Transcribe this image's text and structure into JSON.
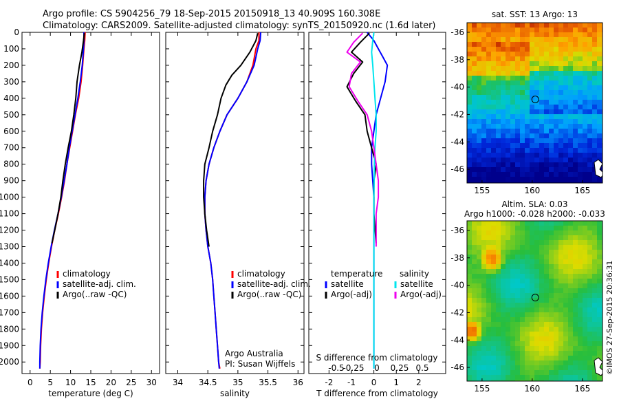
{
  "header": {
    "line1": "Argo profile: CS 5904256_79 18-Sep-2015 20150918_13 40.909S 160.308E",
    "line2": "Climatology: CARS2009. Satellite-adjusted climatology: synTS_20150920.nc (1.6d later)"
  },
  "colors": {
    "climatology": "#ff0000",
    "satellite": "#0000ff",
    "argo": "#000000",
    "salinity_satellite": "#00e5ee",
    "salinity_argo": "#ee00ee"
  },
  "chart_data": [
    {
      "id": "temperature",
      "type": "line",
      "xlabel": "temperature (deg C)",
      "ylabel": "",
      "xlim": [
        -2,
        32
      ],
      "ylim": [
        2070,
        0
      ],
      "xticks": [
        0,
        5,
        10,
        15,
        20,
        25,
        30
      ],
      "yticks": [
        0,
        100,
        200,
        300,
        400,
        500,
        600,
        700,
        800,
        900,
        1000,
        1100,
        1200,
        1300,
        1400,
        1500,
        1600,
        1700,
        1800,
        1900,
        2000
      ],
      "legend": {
        "position": "bottom-center",
        "entries": [
          "climatology",
          "satellite-adj. clim.",
          "Argo(..raw -QC)"
        ]
      },
      "series": [
        {
          "name": "climatology",
          "color": "#ff0000",
          "x": [
            13.6,
            13.5,
            13.3,
            13.0,
            12.6,
            12.0,
            11.2,
            10.5,
            9.8,
            9.1,
            8.5,
            7.8,
            7.0,
            6.1,
            5.3,
            4.6,
            4.0,
            3.5,
            3.1,
            2.8,
            2.6,
            2.5,
            2.4
          ],
          "y": [
            0,
            50,
            100,
            200,
            300,
            400,
            500,
            600,
            700,
            800,
            900,
            1000,
            1100,
            1200,
            1300,
            1400,
            1500,
            1600,
            1700,
            1800,
            1900,
            2000,
            2040
          ]
        },
        {
          "name": "satellite-adj. clim.",
          "color": "#0000ff",
          "x": [
            13.3,
            13.3,
            13.2,
            12.9,
            12.4,
            11.8,
            11.1,
            10.4,
            9.7,
            9.1,
            8.4,
            7.7,
            6.9,
            6.0,
            5.2,
            4.5,
            3.9,
            3.4,
            3.0,
            2.7,
            2.5,
            2.4,
            2.4
          ],
          "y": [
            0,
            50,
            100,
            200,
            300,
            400,
            500,
            600,
            700,
            800,
            900,
            1000,
            1100,
            1200,
            1300,
            1400,
            1500,
            1600,
            1700,
            1800,
            1900,
            2000,
            2040
          ]
        },
        {
          "name": "Argo(..raw -QC)",
          "color": "#000000",
          "x": [
            13.4,
            13.2,
            12.8,
            12.2,
            11.6,
            11.3,
            10.8,
            10.2,
            9.4,
            8.7,
            8.1,
            7.6,
            6.9,
            6.1,
            5.4
          ],
          "y": [
            5,
            50,
            120,
            200,
            300,
            400,
            500,
            600,
            700,
            800,
            900,
            1000,
            1100,
            1200,
            1280
          ]
        }
      ]
    },
    {
      "id": "salinity",
      "type": "line",
      "xlabel": "salinity",
      "xlim": [
        33.8,
        36.1
      ],
      "ylim": [
        2070,
        0
      ],
      "xticks": [
        34,
        34.5,
        35,
        35.5,
        36
      ],
      "legend": {
        "position": "bottom-center",
        "entries": [
          "climatology",
          "satellite-adj. clim.",
          "Argo(..raw -QC)"
        ]
      },
      "annotation": [
        "Argo Australia",
        "PI: Susan Wijffels"
      ],
      "series": [
        {
          "name": "climatology",
          "color": "#ff0000",
          "x": [
            35.35,
            35.35,
            35.3,
            35.25,
            35.15,
            35.0,
            34.82,
            34.7,
            34.6,
            34.52,
            34.47,
            34.45,
            34.45,
            34.47,
            34.5,
            34.55,
            34.58,
            34.6,
            34.62,
            34.64,
            34.66,
            34.68,
            34.7
          ],
          "y": [
            0,
            50,
            100,
            200,
            300,
            400,
            500,
            600,
            700,
            800,
            900,
            1000,
            1100,
            1200,
            1300,
            1400,
            1500,
            1600,
            1700,
            1800,
            1900,
            2000,
            2040
          ]
        },
        {
          "name": "satellite-adj. clim.",
          "color": "#0000ff",
          "x": [
            35.38,
            35.37,
            35.33,
            35.27,
            35.15,
            35.0,
            34.82,
            34.7,
            34.6,
            34.52,
            34.47,
            34.45,
            34.45,
            34.47,
            34.5,
            34.55,
            34.58,
            34.6,
            34.62,
            34.64,
            34.66,
            34.68,
            34.69
          ],
          "y": [
            0,
            50,
            100,
            200,
            300,
            400,
            500,
            600,
            700,
            800,
            900,
            1000,
            1100,
            1200,
            1300,
            1400,
            1500,
            1600,
            1700,
            1800,
            1900,
            2000,
            2040
          ]
        },
        {
          "name": "Argo(..raw -QC)",
          "color": "#000000",
          "x": [
            35.33,
            35.3,
            35.2,
            35.05,
            34.9,
            34.8,
            34.72,
            34.66,
            34.58,
            34.52,
            34.45,
            34.43,
            34.43,
            34.45,
            34.48,
            34.52
          ],
          "y": [
            5,
            50,
            120,
            200,
            260,
            320,
            400,
            500,
            600,
            700,
            800,
            900,
            1000,
            1100,
            1200,
            1300
          ]
        }
      ]
    },
    {
      "id": "difference",
      "type": "line",
      "xlabel": "T difference from climatology",
      "top_label": "S difference from climatology",
      "xlim": [
        -2.9,
        3.2
      ],
      "ylim": [
        2070,
        0
      ],
      "xticks": [
        -2,
        -1,
        0,
        1,
        2
      ],
      "top_ticks": [
        "-0.5",
        "-0.25",
        "0",
        "0.25",
        "0.5"
      ],
      "legend_left": {
        "title": "temperature",
        "entries": [
          "satellite",
          "Argo(-adj)"
        ]
      },
      "legend_right": {
        "title": "salinity",
        "entries": [
          "satellite",
          "Argo(-adj)"
        ]
      },
      "series": [
        {
          "name": "temperature satellite",
          "color": "#0000ff",
          "x": [
            -0.3,
            0.0,
            0.2,
            0.4,
            0.6,
            0.5,
            0.3,
            0.1,
            0.0,
            -0.1,
            -0.1,
            0.0,
            0.0,
            0.0,
            0.0,
            0.0,
            0.0
          ],
          "y": [
            0,
            50,
            100,
            150,
            200,
            300,
            400,
            500,
            600,
            700,
            800,
            1000,
            1200,
            1400,
            1600,
            1800,
            2040
          ]
        },
        {
          "name": "temperature Argo(-adj)",
          "color": "#000000",
          "x": [
            -0.2,
            -0.6,
            -1.0,
            -0.5,
            -0.9,
            -1.2,
            -0.8,
            -0.4,
            -0.3,
            -0.1,
            0.1,
            0.0,
            0.0,
            0.0,
            0.1
          ],
          "y": [
            5,
            60,
            120,
            180,
            250,
            330,
            420,
            500,
            600,
            700,
            800,
            900,
            1000,
            1100,
            1280
          ]
        },
        {
          "name": "salinity satellite",
          "color": "#00e5ee",
          "x": [
            0.0,
            -0.05,
            -0.1,
            -0.05,
            0.0,
            0.05,
            0.1,
            0.1,
            0.05,
            0.02,
            0.0,
            0.0,
            0.0,
            0.0,
            0.0,
            0.0
          ],
          "y": [
            0,
            50,
            120,
            200,
            300,
            400,
            500,
            600,
            700,
            800,
            1000,
            1200,
            1400,
            1600,
            1800,
            2040
          ]
        },
        {
          "name": "salinity Argo(-adj)",
          "color": "#ee00ee",
          "x": [
            -0.5,
            -0.9,
            -1.2,
            -0.6,
            -1.0,
            -1.1,
            -0.7,
            -0.3,
            -0.1,
            0.0,
            0.1,
            0.2,
            0.2,
            0.1,
            0.1
          ],
          "y": [
            5,
            60,
            120,
            180,
            250,
            330,
            420,
            500,
            600,
            700,
            800,
            900,
            1000,
            1100,
            1300
          ]
        }
      ]
    },
    {
      "id": "sst-map",
      "type": "heatmap",
      "title": "sat. SST: 13 Argo: 13",
      "xlim": [
        153.5,
        167
      ],
      "ylim": [
        -47,
        -35.3
      ],
      "xticks": [
        155,
        160,
        165
      ],
      "yticks": [
        -36,
        -38,
        -40,
        -42,
        -44,
        -46
      ],
      "marker": {
        "lon": 160.3,
        "lat": -40.9
      }
    },
    {
      "id": "sla-map",
      "type": "heatmap",
      "title": "Altim. SLA: 0.03",
      "subtitle": "Argo h1000: -0.028 h2000: -0.033",
      "xlim": [
        153.5,
        167
      ],
      "ylim": [
        -47,
        -35.3
      ],
      "xticks": [
        155,
        160,
        165
      ],
      "yticks": [
        -36,
        -38,
        -40,
        -42,
        -44,
        -46
      ],
      "marker": {
        "lon": 160.3,
        "lat": -40.9
      }
    }
  ],
  "footer": {
    "stamp": "©IMOS 27-Sep-2015 20:36:31"
  }
}
